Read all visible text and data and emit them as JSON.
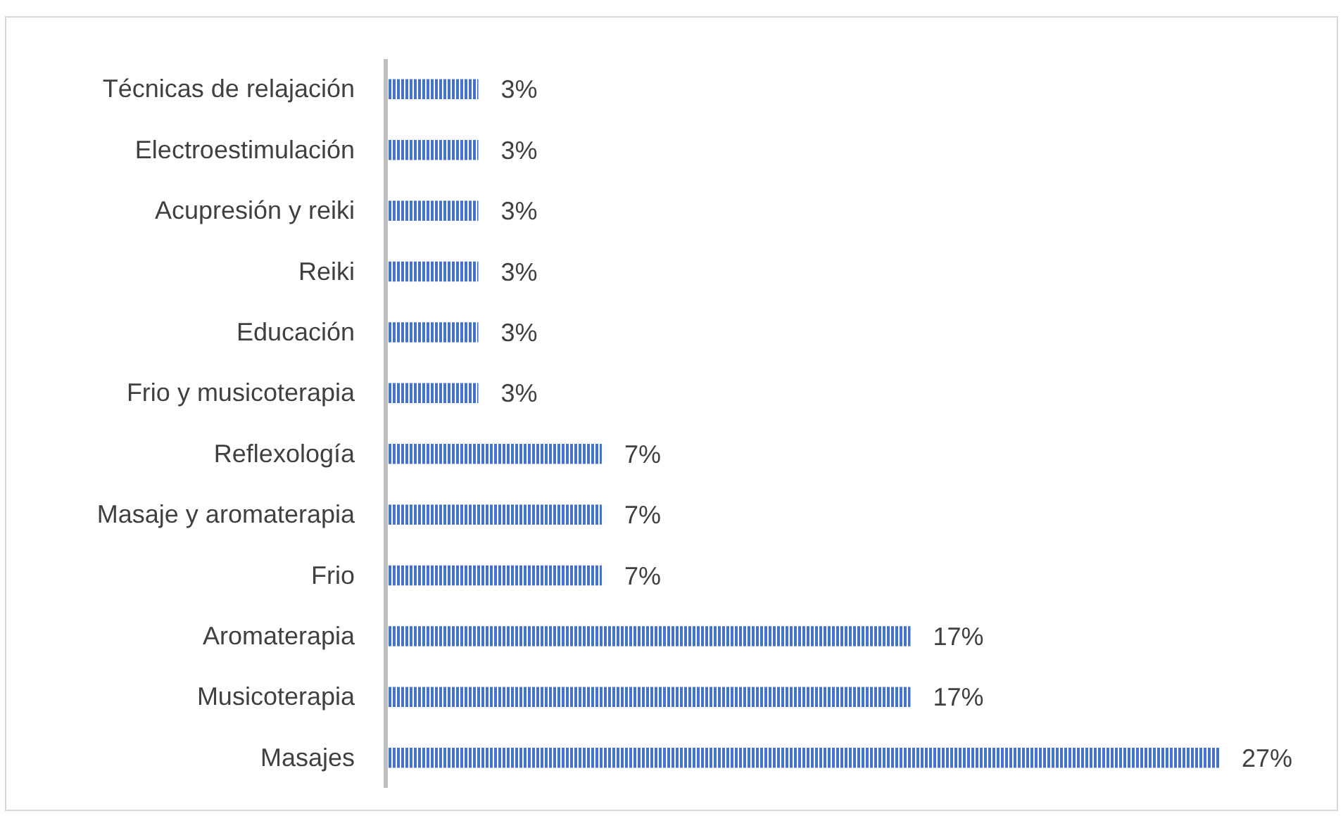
{
  "chart_data": {
    "type": "bar",
    "orientation": "horizontal",
    "categories": [
      "Técnicas de relajación",
      "Electroestimulación",
      "Acupresión y reiki",
      "Reiki",
      "Educación",
      "Frio y musicoterapia",
      "Reflexología",
      "Masaje y aromaterapia",
      "Frio",
      "Aromaterapia",
      "Musicoterapia",
      "Masajes"
    ],
    "values": [
      3,
      3,
      3,
      3,
      3,
      3,
      7,
      7,
      7,
      17,
      17,
      27
    ],
    "value_labels": [
      "3%",
      "3%",
      "3%",
      "3%",
      "3%",
      "3%",
      "7%",
      "7%",
      "7%",
      "17%",
      "17%",
      "27%"
    ],
    "color": "#4472c4"
  }
}
